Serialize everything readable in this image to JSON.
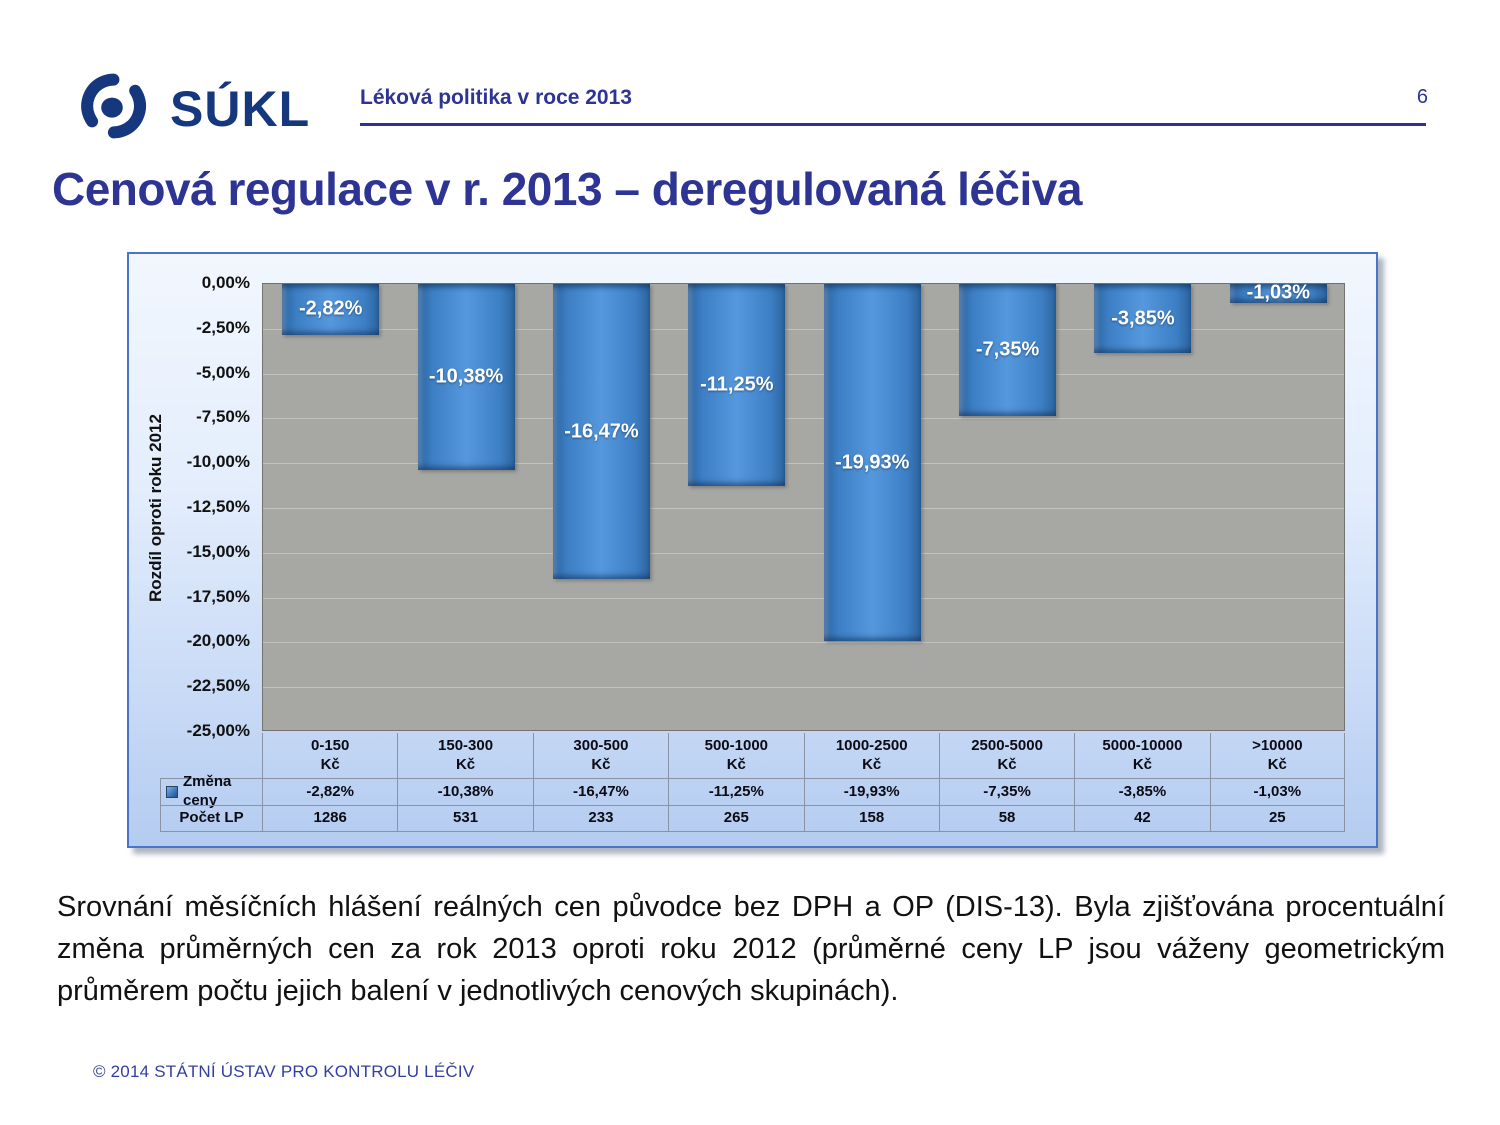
{
  "header": {
    "logo_text": "SÚKL",
    "logo_icon": "sukl-eye-swoosh-icon",
    "title": "Léková politika v roce 2013",
    "page_number": "6"
  },
  "slide": {
    "title": "Cenová regulace v r. 2013 – deregulovaná léčiva"
  },
  "chart_data": {
    "type": "bar",
    "title": "",
    "xlabel": "",
    "ylabel": "Rozdíl oproti roku 2012",
    "ylim": [
      -25,
      0
    ],
    "ytick_step": 2.5,
    "ytick_labels": [
      "0,00%",
      "-2,50%",
      "-5,00%",
      "-7,50%",
      "-10,00%",
      "-12,50%",
      "-15,00%",
      "-17,50%",
      "-20,00%",
      "-22,50%",
      "-25,00%"
    ],
    "categories": [
      {
        "line1": "0-150",
        "line2": "Kč"
      },
      {
        "line1": "150-300",
        "line2": "Kč"
      },
      {
        "line1": "300-500",
        "line2": "Kč"
      },
      {
        "line1": "500-1000",
        "line2": "Kč"
      },
      {
        "line1": "1000-2500",
        "line2": "Kč"
      },
      {
        "line1": "2500-5000",
        "line2": "Kč"
      },
      {
        "line1": "5000-10000",
        "line2": "Kč"
      },
      {
        "line1": ">10000",
        "line2": "Kč"
      }
    ],
    "series": [
      {
        "name": "Změna ceny",
        "values": [
          -2.82,
          -10.38,
          -16.47,
          -11.25,
          -19.93,
          -7.35,
          -3.85,
          -1.03
        ]
      }
    ],
    "value_labels": [
      "-2,82%",
      "-10,38%",
      "-16,47%",
      "-11,25%",
      "-19,93%",
      "-7,35%",
      "-3,85%",
      "-1,03%"
    ],
    "grid": "horizontal",
    "legend_position": "table-left",
    "table": {
      "rows": [
        {
          "label": "Změna ceny",
          "has_legend_square": true,
          "values": [
            "-2,82%",
            "-10,38%",
            "-16,47%",
            "-11,25%",
            "-19,93%",
            "-7,35%",
            "-3,85%",
            "-1,03%"
          ]
        },
        {
          "label": "Počet LP",
          "has_legend_square": false,
          "values": [
            "1286",
            "531",
            "233",
            "265",
            "158",
            "58",
            "42",
            "25"
          ]
        }
      ]
    }
  },
  "body": {
    "text": "Srovnání měsíčních hlášení reálných cen původce bez DPH a OP (DIS-13). Byla zjišťována procentuální změna průměrných cen za rok 2013 oproti roku 2012 (průměrné ceny LP jsou váženy geometrickým průměrem počtu jejich balení v jednotlivých cenových skupinách)."
  },
  "footer": {
    "text": "© 2014  STÁTNÍ ÚSTAV PRO KONTROLU LÉČIV"
  },
  "colors": {
    "brand_navy": "#15377e",
    "title_navy": "#2d3493",
    "bar_blue": "#3d7fc4",
    "plot_gray": "#a7a7a3",
    "frame_blue": "#4a74c8",
    "table_blue": "#b4ccf1"
  }
}
